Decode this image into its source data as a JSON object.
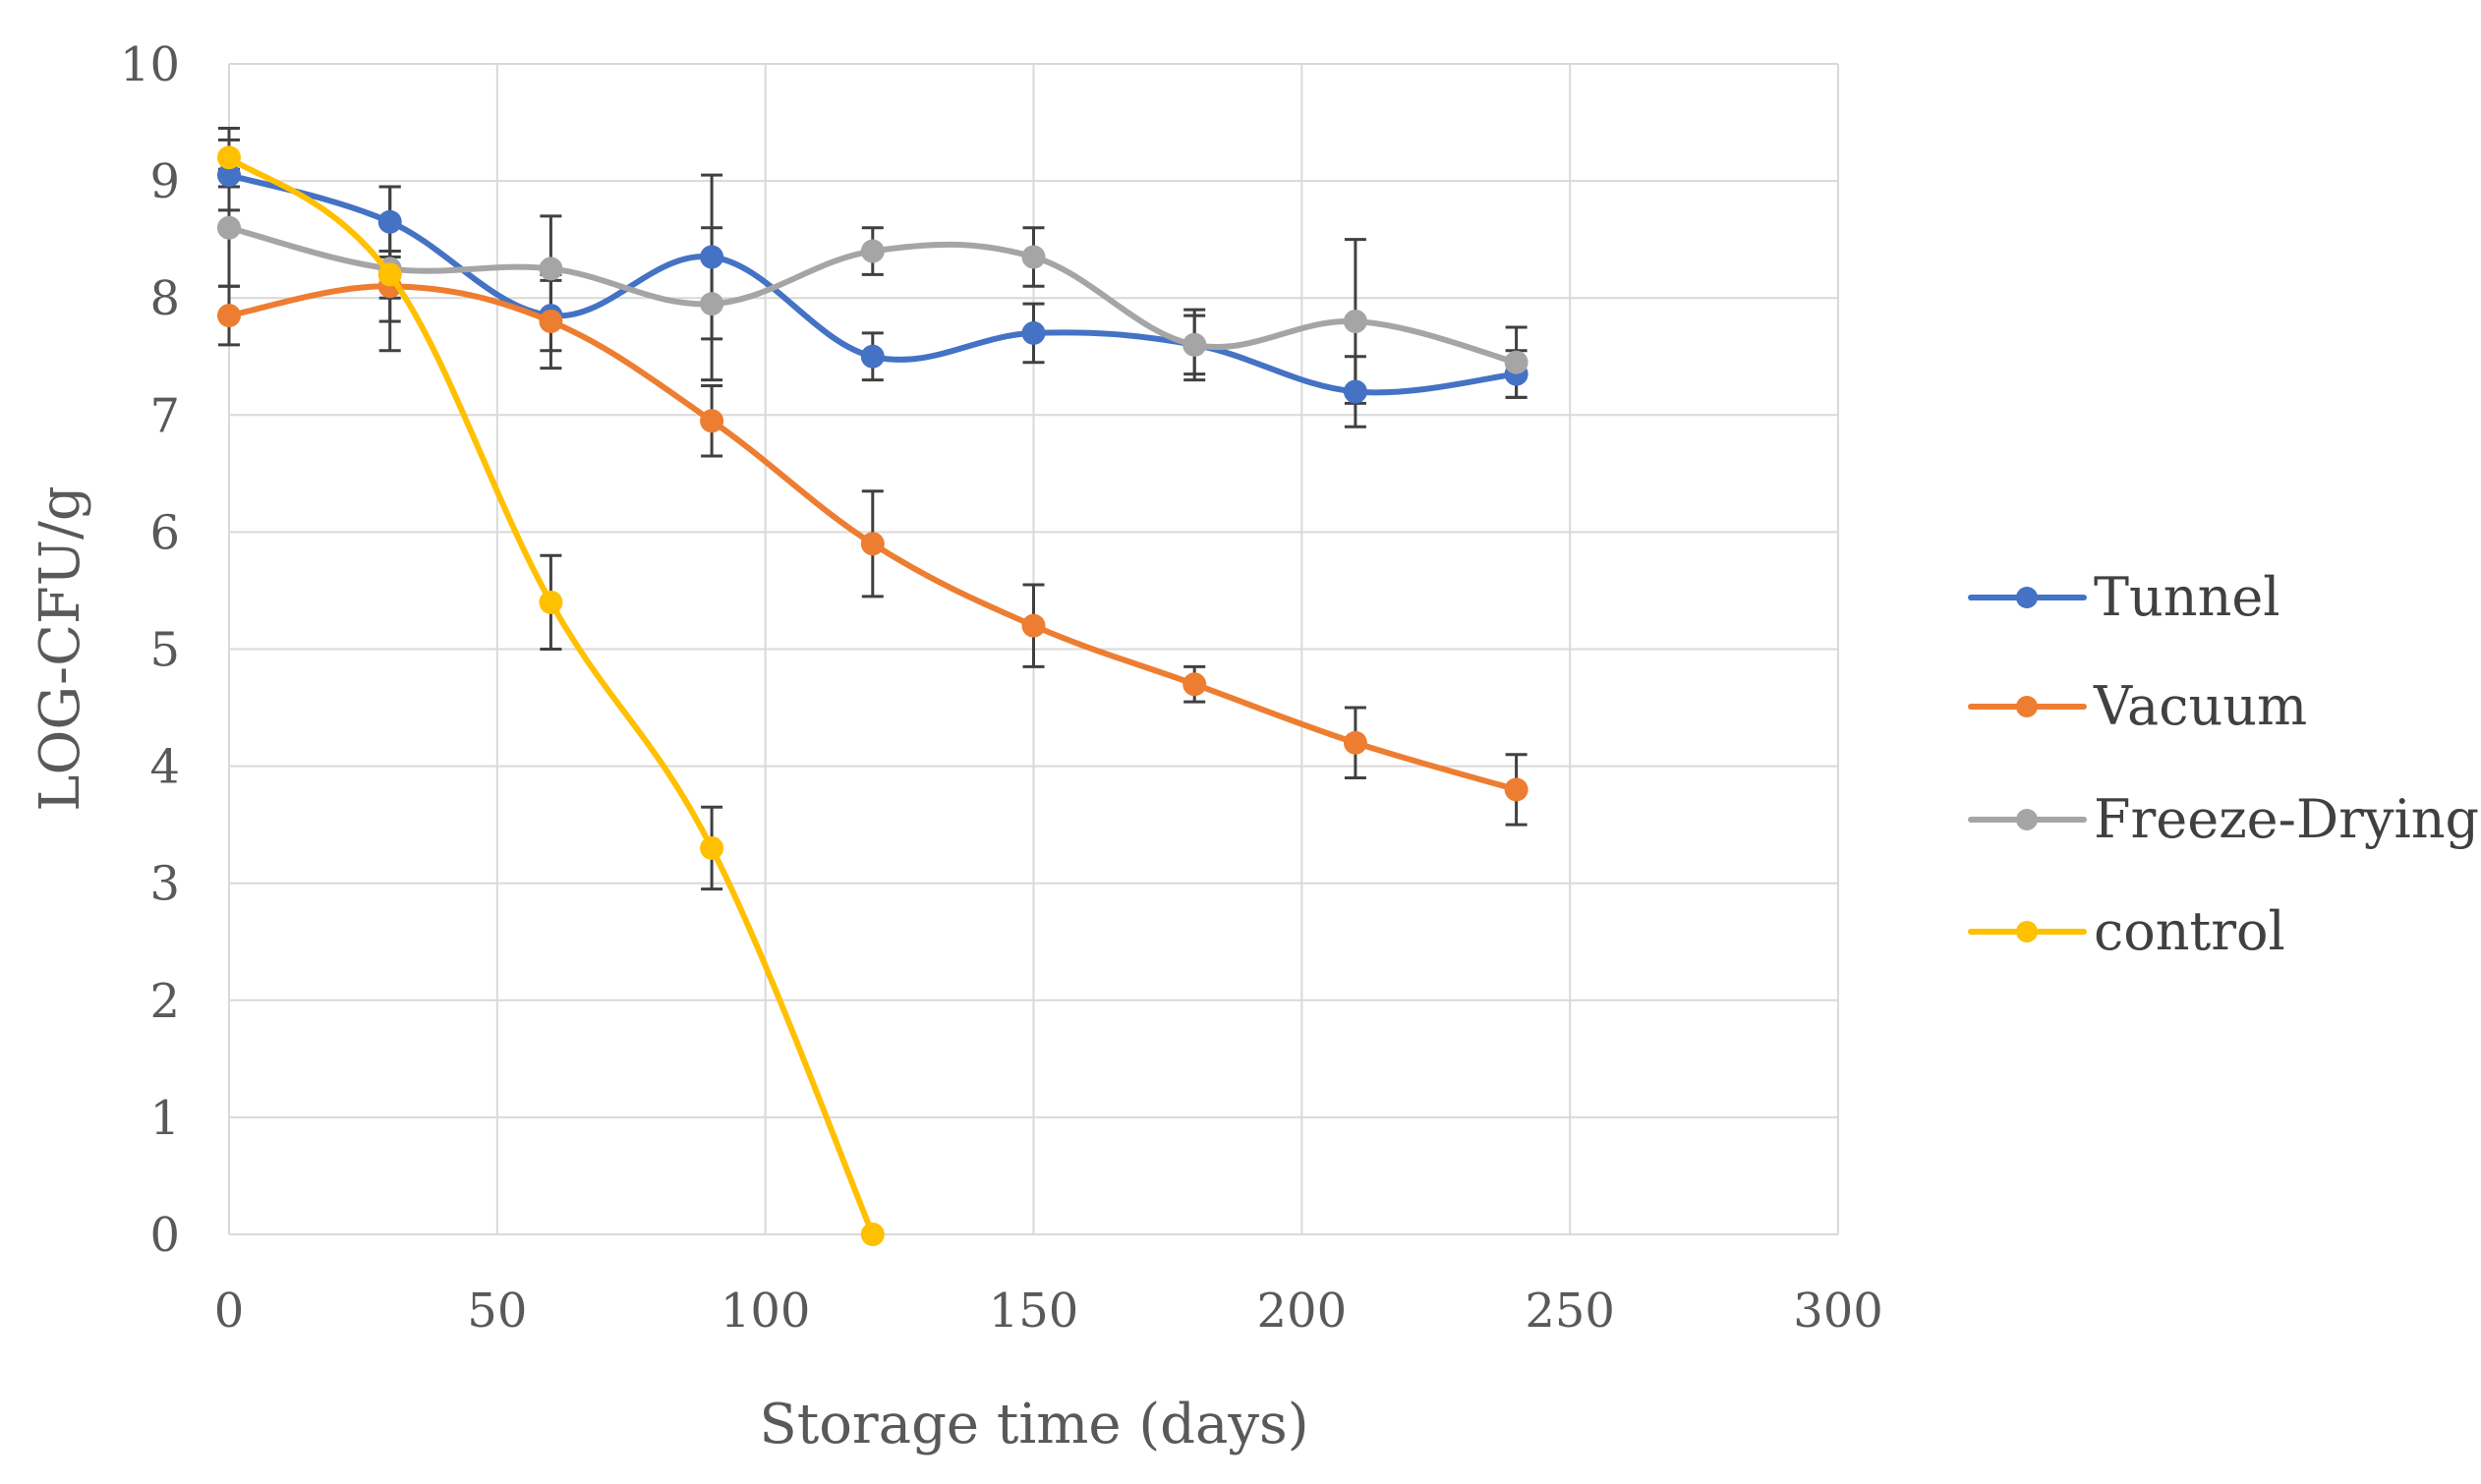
{
  "chart_data": {
    "type": "line",
    "title": "",
    "xlabel": "Storage time (days)",
    "ylabel": "LOG-CFU/g",
    "xlim": [
      0,
      300
    ],
    "ylim": [
      0,
      10
    ],
    "xticks": [
      0,
      50,
      100,
      150,
      200,
      250,
      300
    ],
    "yticks": [
      0,
      1,
      2,
      3,
      4,
      5,
      6,
      7,
      8,
      9,
      10
    ],
    "grid": true,
    "legend_position": "right",
    "series": [
      {
        "name": "Tunnel",
        "color": "#4472c4",
        "x": [
          0,
          30,
          60,
          90,
          120,
          150,
          180,
          210,
          240
        ],
        "y": [
          9.05,
          8.65,
          7.85,
          8.35,
          7.5,
          7.7,
          7.6,
          7.2,
          7.35
        ],
        "err": [
          0.3,
          0.3,
          0.3,
          0.7,
          0.2,
          0.25,
          0.25,
          0.3,
          0.2
        ]
      },
      {
        "name": "Vacuum",
        "color": "#ed7d31",
        "x": [
          0,
          30,
          60,
          90,
          120,
          150,
          180,
          210,
          240
        ],
        "y": [
          7.85,
          8.1,
          7.8,
          6.95,
          5.9,
          5.2,
          4.7,
          4.2,
          3.8
        ],
        "err": [
          0.25,
          0.3,
          0.4,
          0.3,
          0.45,
          0.35,
          0.15,
          0.3,
          0.3
        ]
      },
      {
        "name": "Freeze-Drying",
        "color": "#a5a5a5",
        "x": [
          0,
          30,
          60,
          90,
          120,
          150,
          180,
          210,
          240
        ],
        "y": [
          8.6,
          8.25,
          8.25,
          7.95,
          8.4,
          8.35,
          7.6,
          7.8,
          7.45
        ],
        "err": [
          0.5,
          0.7,
          0.45,
          0.65,
          0.2,
          0.25,
          0.3,
          0.7,
          0.3
        ]
      },
      {
        "name": "control",
        "color": "#ffc000",
        "x": [
          0,
          30,
          60,
          90,
          120
        ],
        "y": [
          9.2,
          8.2,
          5.4,
          3.3,
          0
        ],
        "err": [
          0.25,
          0.2,
          0.4,
          0.35,
          0
        ]
      }
    ]
  }
}
